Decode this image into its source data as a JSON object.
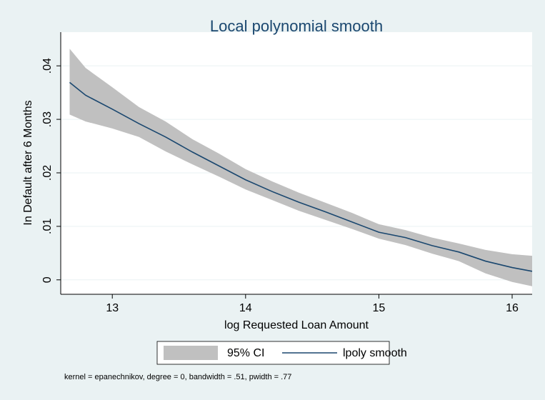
{
  "chart_data": {
    "type": "lpoly",
    "title": "Local polynomial smooth",
    "x_label": "log Requested Loan Amount",
    "y_label": "In Default after 6 Months",
    "note": "kernel = epanechnikov, degree = 0, bandwidth = .51, pwidth = .77",
    "x": [
      12.68,
      12.8,
      13.0,
      13.2,
      13.4,
      13.6,
      13.8,
      14.0,
      14.2,
      14.4,
      14.6,
      14.8,
      15.0,
      15.2,
      15.4,
      15.6,
      15.8,
      16.0,
      16.15
    ],
    "series": [
      {
        "name": "95% CI",
        "color": "#c0c0c0",
        "lower": [
          0.0309,
          0.0296,
          0.0283,
          0.0267,
          0.024,
          0.0216,
          0.0193,
          0.0169,
          0.0149,
          0.0129,
          0.0112,
          0.0095,
          0.0077,
          0.0065,
          0.0049,
          0.0035,
          0.0012,
          -0.0004,
          -0.0012
        ],
        "upper": [
          0.0432,
          0.0396,
          0.036,
          0.0323,
          0.0296,
          0.0263,
          0.0236,
          0.0207,
          0.0184,
          0.0163,
          0.0144,
          0.0125,
          0.0104,
          0.0093,
          0.0079,
          0.0068,
          0.0056,
          0.0048,
          0.0045
        ]
      },
      {
        "name": "lpoly smooth",
        "color": "#1a476f",
        "values": [
          0.0369,
          0.0345,
          0.0319,
          0.0292,
          0.0267,
          0.0239,
          0.0213,
          0.0187,
          0.0165,
          0.0145,
          0.0127,
          0.0108,
          0.0089,
          0.0079,
          0.0064,
          0.0052,
          0.0035,
          0.0023,
          0.0016
        ]
      }
    ],
    "xlim": [
      12.613,
      16.15
    ],
    "ylim": [
      -0.0027,
      0.0463
    ],
    "xticks": [
      13,
      14,
      15,
      16
    ],
    "yticks": [
      0,
      {
        "value": 0.01,
        "label": ".01"
      },
      {
        "value": 0.02,
        "label": ".02"
      },
      {
        "value": 0.03,
        "label": ".03"
      },
      {
        "value": 0.04,
        "label": ".04"
      }
    ],
    "grid": true
  }
}
